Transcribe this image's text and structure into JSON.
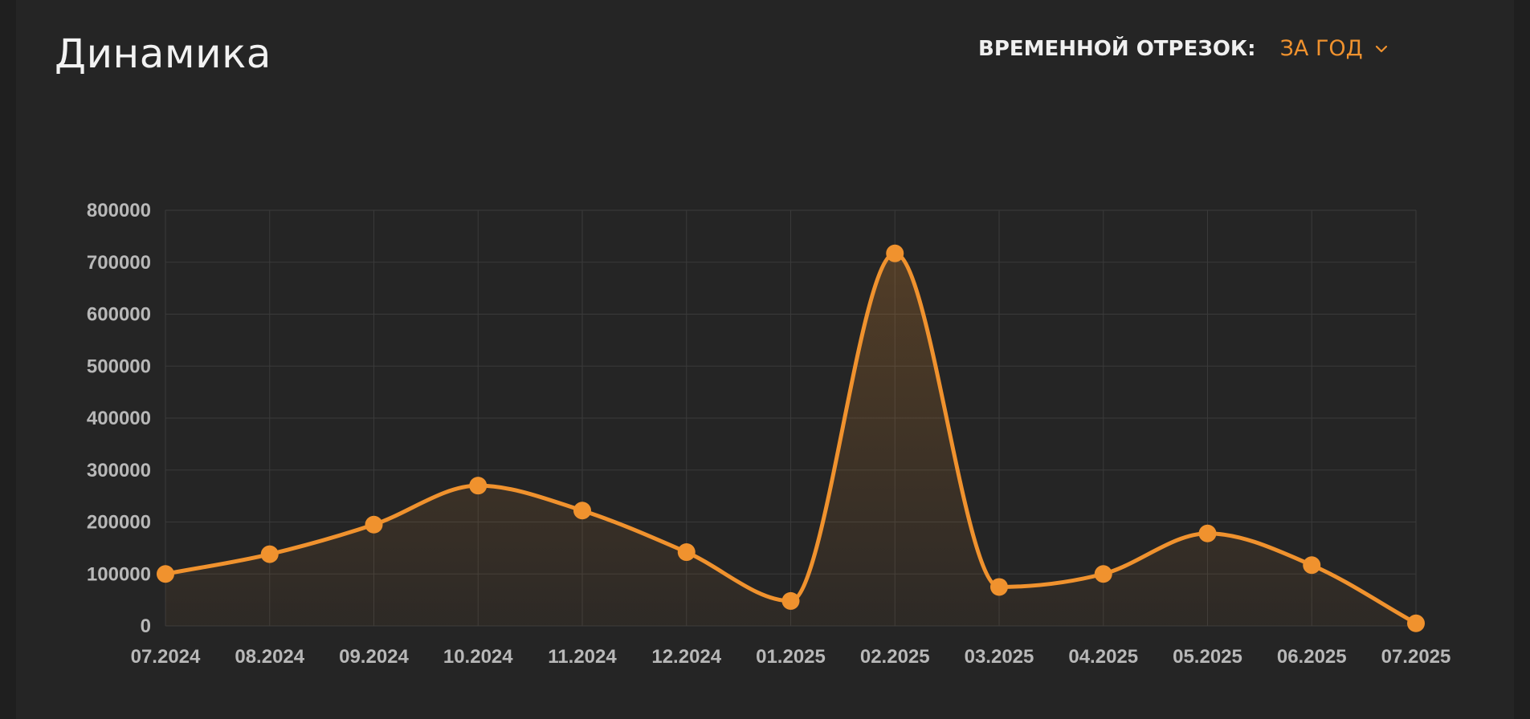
{
  "header": {
    "title": "Динамика",
    "period_label": "ВРЕМЕННОЙ ОТРЕЗОК:",
    "period_value": "ЗА ГОД",
    "period_icon": "chevron-down-icon"
  },
  "colors": {
    "background": "#252525",
    "accent": "#f0922e",
    "grid": "#3a3a3a",
    "tick_text": "#b8b8b8"
  },
  "chart_data": {
    "type": "line",
    "title": "",
    "xlabel": "",
    "ylabel": "",
    "categories": [
      "07.2024",
      "08.2024",
      "09.2024",
      "10.2024",
      "11.2024",
      "12.2024",
      "01.2025",
      "02.2025",
      "03.2025",
      "04.2025",
      "05.2025",
      "06.2025",
      "07.2025"
    ],
    "series": [
      {
        "values": [
          100000,
          138000,
          195000,
          270000,
          222000,
          142000,
          48000,
          717000,
          75000,
          100000,
          178000,
          117000,
          5000
        ]
      }
    ],
    "ylim": [
      0,
      800000
    ],
    "yticks": [
      "0",
      "100000",
      "200000",
      "300000",
      "400000",
      "500000",
      "600000",
      "700000",
      "800000"
    ],
    "grid": true,
    "smooth": true,
    "area_fill": true
  }
}
